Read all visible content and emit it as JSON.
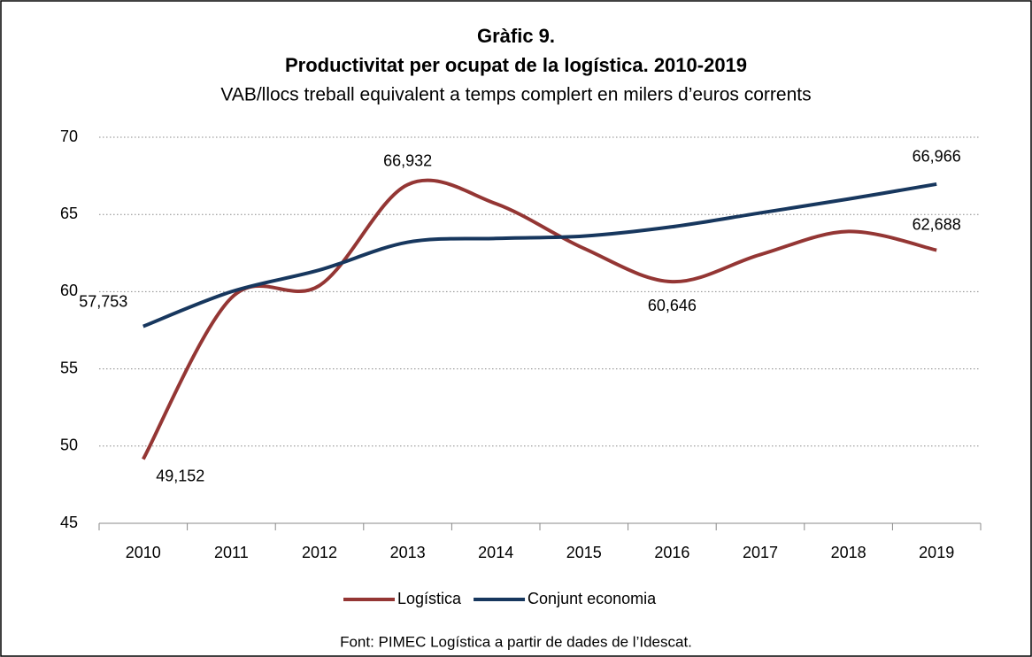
{
  "chart_data": {
    "type": "line",
    "title": "Gràfic 9.",
    "subtitle": "Productivitat per ocupat de la logística. 2010-2019",
    "axis_label": "VAB/llocs treball equivalent a temps complert en milers d’euros corrents",
    "source": "Font: PIMEC Logística a partir de dades de l’Idescat.",
    "categories": [
      "2010",
      "2011",
      "2012",
      "2013",
      "2014",
      "2015",
      "2016",
      "2017",
      "2018",
      "2019"
    ],
    "series": [
      {
        "name": "Logística",
        "color": "#943634",
        "values": [
          49.152,
          59.6,
          60.4,
          66.932,
          65.7,
          62.8,
          60.646,
          62.4,
          63.9,
          62.688
        ],
        "value_labels": [
          "49,152",
          null,
          null,
          "66,932",
          null,
          null,
          "60,646",
          null,
          null,
          "62,688"
        ]
      },
      {
        "name": "Conjunt economia",
        "color": "#17375e",
        "values": [
          57.753,
          60.0,
          61.4,
          63.2,
          63.45,
          63.6,
          64.2,
          65.1,
          66.0,
          66.966
        ],
        "value_labels": [
          "57,753",
          null,
          null,
          null,
          null,
          null,
          null,
          null,
          null,
          "66,966"
        ]
      }
    ],
    "ylim": [
      45,
      70
    ],
    "yticks": [
      45,
      50,
      55,
      60,
      65,
      70
    ],
    "grid": true,
    "legend": "bottom"
  }
}
